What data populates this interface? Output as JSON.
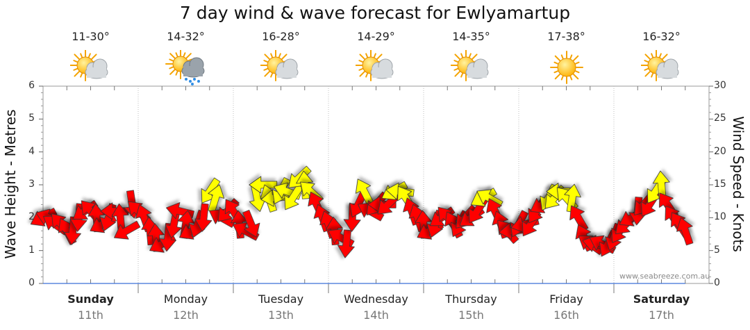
{
  "title": "7 day wind & wave forecast for Ewlyamartup",
  "watermark": "www.seabreeze.com.au",
  "colors": {
    "strong": "#ff0000",
    "moderate": "#ffff00",
    "outline": "#333333",
    "grid": "#bdbdbd"
  },
  "days": [
    {
      "name": "Sunday",
      "date": "11th",
      "temp": "11-30°",
      "icon": "partly-cloudy-icon",
      "bold": true
    },
    {
      "name": "Monday",
      "date": "12th",
      "temp": "14-32°",
      "icon": "rain-cloud-icon",
      "bold": false
    },
    {
      "name": "Tuesday",
      "date": "13th",
      "temp": "16-28°",
      "icon": "partly-cloudy-icon",
      "bold": false
    },
    {
      "name": "Wednesday",
      "date": "14th",
      "temp": "14-29°",
      "icon": "partly-cloudy-icon",
      "bold": false
    },
    {
      "name": "Thursday",
      "date": "15th",
      "temp": "14-35°",
      "icon": "partly-cloudy-icon",
      "bold": false
    },
    {
      "name": "Friday",
      "date": "16th",
      "temp": "17-38°",
      "icon": "sun-icon",
      "bold": false
    },
    {
      "name": "Saturday",
      "date": "17th",
      "temp": "16-32°",
      "icon": "partly-cloudy-icon",
      "bold": true
    }
  ],
  "chart_data": {
    "type": "line",
    "title": "7 day wind & wave forecast for Ewlyamartup",
    "ylabel_left": "Wave Height - Metres",
    "ylabel_right": "Wind Speed - Knots",
    "ylim_left": [
      0,
      6
    ],
    "ylim_right": [
      0,
      30
    ],
    "yticks_left": [
      "0",
      "1",
      "2",
      "3",
      "4",
      "5",
      "6"
    ],
    "yticks_right": [
      "0",
      "5",
      "10",
      "15",
      "20",
      "25",
      "30"
    ],
    "x_unit": "hours",
    "xlim": [
      0,
      168
    ],
    "grid": true,
    "series": [
      {
        "name": "Wind speed (knots)",
        "points": [
          [
            0,
            10
          ],
          [
            1.5,
            10
          ],
          [
            3,
            9
          ],
          [
            4.5,
            9
          ],
          [
            6,
            8
          ],
          [
            7.5,
            8
          ],
          [
            9,
            10
          ],
          [
            10.5,
            11
          ],
          [
            12,
            11
          ],
          [
            13.5,
            10
          ],
          [
            15,
            9
          ],
          [
            16.5,
            10
          ],
          [
            18,
            11
          ],
          [
            19.5,
            10
          ],
          [
            21,
            8
          ],
          [
            22.5,
            12
          ],
          [
            24,
            11
          ],
          [
            25.5,
            10
          ],
          [
            27,
            8
          ],
          [
            28.5,
            7
          ],
          [
            30,
            6
          ],
          [
            31.5,
            7
          ],
          [
            33,
            9
          ],
          [
            34.5,
            11
          ],
          [
            36,
            9
          ],
          [
            37.5,
            8
          ],
          [
            39,
            9
          ],
          [
            40.5,
            10
          ],
          [
            42,
            14
          ],
          [
            43.5,
            13
          ],
          [
            45,
            10
          ],
          [
            46.5,
            11
          ],
          [
            48,
            11
          ],
          [
            49.5,
            9
          ],
          [
            51,
            8
          ],
          [
            52.5,
            9
          ],
          [
            54,
            13
          ],
          [
            55.5,
            15
          ],
          [
            57,
            13
          ],
          [
            58.5,
            13
          ],
          [
            60,
            14
          ],
          [
            61.5,
            14
          ],
          [
            63,
            13
          ],
          [
            64.5,
            16
          ],
          [
            66,
            15
          ],
          [
            67.5,
            14
          ],
          [
            69,
            12
          ],
          [
            70.5,
            10
          ],
          [
            72,
            9
          ],
          [
            73.5,
            8
          ],
          [
            75,
            7
          ],
          [
            76.5,
            6
          ],
          [
            78,
            10
          ],
          [
            79.5,
            12
          ],
          [
            81,
            14
          ],
          [
            82.5,
            11
          ],
          [
            84,
            12
          ],
          [
            85.5,
            12
          ],
          [
            87,
            12
          ],
          [
            88.5,
            14
          ],
          [
            90,
            14
          ],
          [
            91.5,
            13
          ],
          [
            93,
            11
          ],
          [
            94.5,
            10
          ],
          [
            96,
            9
          ],
          [
            97.5,
            8
          ],
          [
            99,
            9
          ],
          [
            100.5,
            10
          ],
          [
            102,
            10
          ],
          [
            103.5,
            9
          ],
          [
            105,
            9
          ],
          [
            106.5,
            10
          ],
          [
            108,
            10
          ],
          [
            109.5,
            11
          ],
          [
            111,
            13
          ],
          [
            112.5,
            13
          ],
          [
            114,
            11
          ],
          [
            115.5,
            9
          ],
          [
            117,
            8
          ],
          [
            118.5,
            8
          ],
          [
            120,
            9
          ],
          [
            121.5,
            9
          ],
          [
            123,
            9
          ],
          [
            124.5,
            11
          ],
          [
            126,
            12
          ],
          [
            127.5,
            13
          ],
          [
            129,
            13
          ],
          [
            130.5,
            14
          ],
          [
            132,
            13
          ],
          [
            133.5,
            13
          ],
          [
            135,
            10
          ],
          [
            136.5,
            7
          ],
          [
            138,
            6
          ],
          [
            139.5,
            6
          ],
          [
            141,
            6
          ],
          [
            142.5,
            6
          ],
          [
            144,
            7
          ],
          [
            145.5,
            8
          ],
          [
            147,
            9
          ],
          [
            148.5,
            10
          ],
          [
            150,
            11
          ],
          [
            151.5,
            12
          ],
          [
            153,
            12
          ],
          [
            154.5,
            14
          ],
          [
            156,
            15
          ],
          [
            157.5,
            12
          ],
          [
            159,
            10
          ],
          [
            160.5,
            9
          ],
          [
            162,
            8
          ]
        ]
      },
      {
        "name": "Wave height (metres)",
        "points": [
          [
            0,
            0
          ],
          [
            162,
            0
          ]
        ]
      }
    ]
  }
}
